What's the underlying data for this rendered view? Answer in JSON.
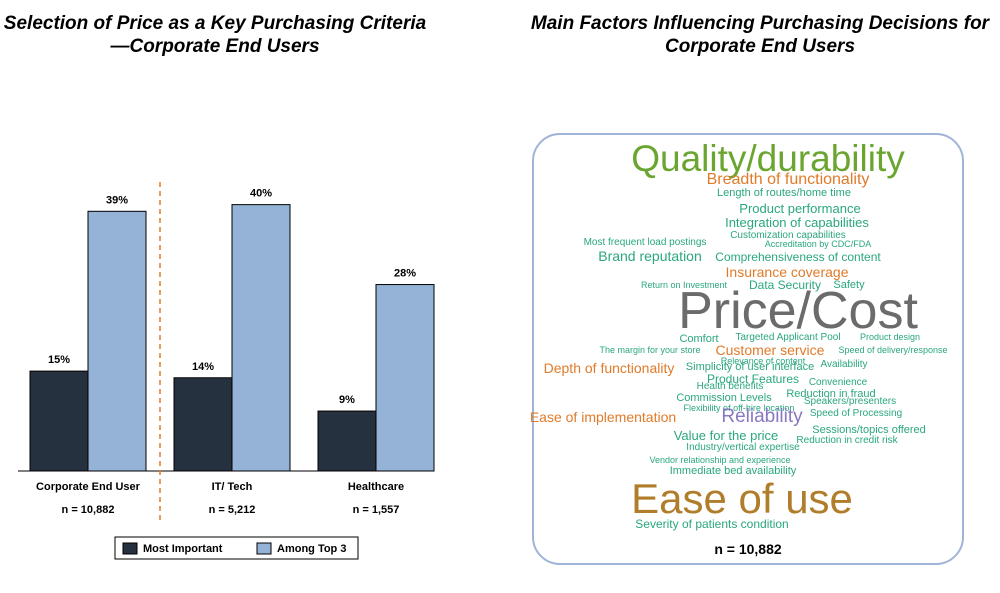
{
  "left_title": "Selection of Price as a Key Purchasing Criteria—Corporate End Users",
  "right_title": "Main Factors Influencing Purchasing Decisions for Corporate End Users",
  "chart_data": [
    {
      "type": "bar",
      "title": "Selection of Price as a Key Purchasing Criteria—Corporate End Users",
      "categories": [
        "Corporate End User",
        "IT/ Tech",
        "Healthcare"
      ],
      "sample_sizes": [
        "n = 10,882",
        "n = 5,212",
        "n = 1,557"
      ],
      "series": [
        {
          "name": "Most Important",
          "values": [
            15,
            14,
            9
          ],
          "labels": [
            "15%",
            "14%",
            "9%"
          ],
          "color": "#263140"
        },
        {
          "name": "Among Top 3",
          "values": [
            39,
            40,
            28
          ],
          "labels": [
            "39%",
            "40%",
            "28%"
          ],
          "color": "#95b3d7"
        }
      ],
      "ylim": [
        0,
        44
      ],
      "legend": "bottom",
      "grid": false,
      "divider": "dashed orange line after first category"
    }
  ],
  "word_cloud": {
    "sample_size": "n = 10,882",
    "colors": {
      "green": "#6aa530",
      "orange": "#e07b2a",
      "teal": "#2aa77f",
      "gray": "#6b6b6b",
      "purple": "#8878c2",
      "brown": "#b07d2a",
      "border": "#9fb4d8"
    },
    "words": [
      {
        "text": "Quality/durability",
        "color": "green"
      },
      {
        "text": "Breadth of functionality",
        "color": "orange"
      },
      {
        "text": "Length of routes/home time",
        "color": "teal"
      },
      {
        "text": "Product performance",
        "color": "teal"
      },
      {
        "text": "Integration of capabilities",
        "color": "teal"
      },
      {
        "text": "Customization capabilities",
        "color": "teal"
      },
      {
        "text": "Most frequent load postings",
        "color": "teal"
      },
      {
        "text": "Accreditation by CDC/FDA",
        "color": "teal"
      },
      {
        "text": "Brand reputation",
        "color": "teal"
      },
      {
        "text": "Comprehensiveness of content",
        "color": "teal"
      },
      {
        "text": "Insurance coverage",
        "color": "orange"
      },
      {
        "text": "Return on Investment",
        "color": "teal"
      },
      {
        "text": "Data Security",
        "color": "teal"
      },
      {
        "text": "Safety",
        "color": "teal"
      },
      {
        "text": "Price/Cost",
        "color": "gray"
      },
      {
        "text": "Comfort",
        "color": "teal"
      },
      {
        "text": "Targeted Applicant Pool",
        "color": "teal"
      },
      {
        "text": "Product design",
        "color": "teal"
      },
      {
        "text": "The margin for your store",
        "color": "teal"
      },
      {
        "text": "Customer service",
        "color": "orange"
      },
      {
        "text": "Speed of delivery/response",
        "color": "teal"
      },
      {
        "text": "Relevance of content",
        "color": "teal"
      },
      {
        "text": "Depth of functionality",
        "color": "orange"
      },
      {
        "text": "Simplicity of user interface",
        "color": "teal"
      },
      {
        "text": "Availability",
        "color": "teal"
      },
      {
        "text": "Product Features",
        "color": "teal"
      },
      {
        "text": "Convenience",
        "color": "teal"
      },
      {
        "text": "Health benefits",
        "color": "teal"
      },
      {
        "text": "Commission Levels",
        "color": "teal"
      },
      {
        "text": "Reduction in fraud",
        "color": "teal"
      },
      {
        "text": "Speakers/presenters",
        "color": "teal"
      },
      {
        "text": "Flexibility of off-hire location",
        "color": "teal"
      },
      {
        "text": "Ease of implementation",
        "color": "orange"
      },
      {
        "text": "Reliability",
        "color": "purple"
      },
      {
        "text": "Speed of Processing",
        "color": "teal"
      },
      {
        "text": "Sessions/topics offered",
        "color": "teal"
      },
      {
        "text": "Value for the price",
        "color": "teal"
      },
      {
        "text": "Reduction in credit risk",
        "color": "teal"
      },
      {
        "text": "Industry/vertical expertise",
        "color": "teal"
      },
      {
        "text": "Vendor relationship and experience",
        "color": "teal"
      },
      {
        "text": "Immediate bed availability",
        "color": "teal"
      },
      {
        "text": "Ease of use",
        "color": "brown"
      },
      {
        "text": "Severity of patients condition",
        "color": "teal"
      }
    ]
  }
}
